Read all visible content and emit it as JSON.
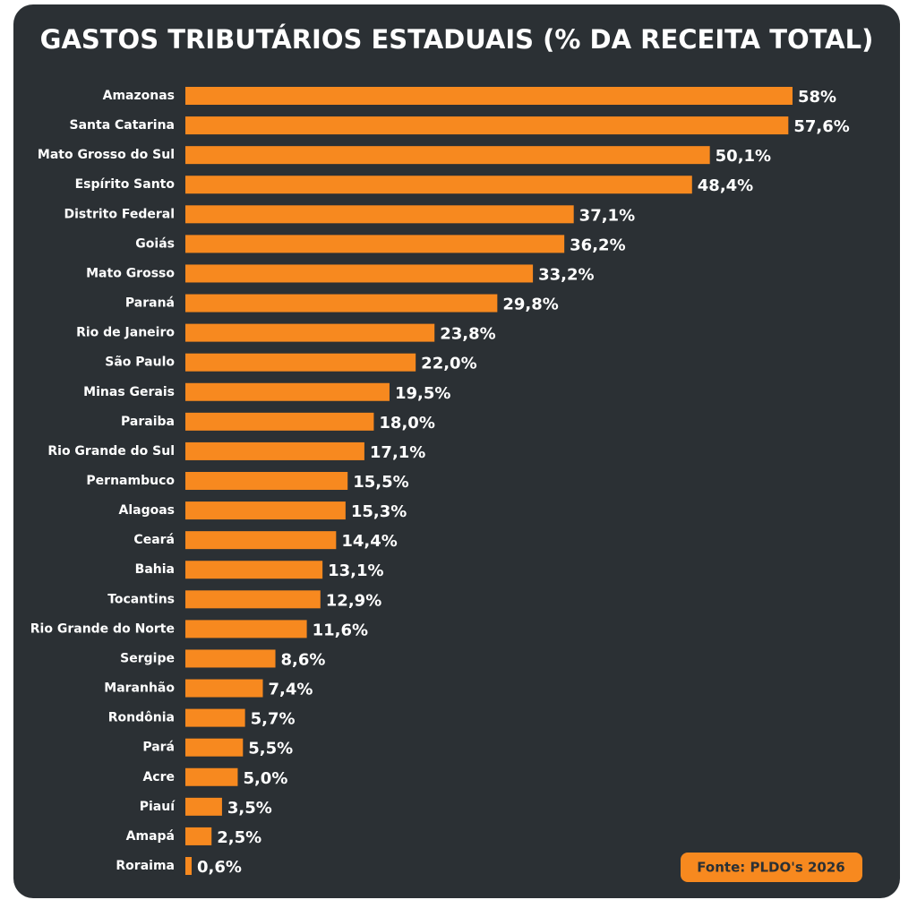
{
  "chart_data": {
    "type": "bar",
    "orientation": "horizontal",
    "title": "GASTOS TRIBUTÁRIOS ESTADUAIS (% DA RECEITA TOTAL)",
    "categories": [
      "Amazonas",
      "Santa Catarina",
      "Mato Grosso do Sul",
      "Espírito Santo",
      "Distrito Federal",
      "Goiás",
      "Mato Grosso",
      "Paraná",
      "Rio de Janeiro",
      "São Paulo",
      "Minas Gerais",
      "Paraiba",
      "Rio Grande do Sul",
      "Pernambuco",
      "Alagoas",
      "Ceará",
      "Bahia",
      "Tocantins",
      "Rio Grande do Norte",
      "Sergipe",
      "Maranhão",
      "Rondônia",
      "Pará",
      "Acre",
      "Piauí",
      "Amapá",
      "Roraima"
    ],
    "values": [
      58,
      57.6,
      50.1,
      48.4,
      37.1,
      36.2,
      33.2,
      29.8,
      23.8,
      22.0,
      19.5,
      18.0,
      17.1,
      15.5,
      15.3,
      14.4,
      13.1,
      12.9,
      11.6,
      8.6,
      7.4,
      5.7,
      5.5,
      5.0,
      3.5,
      2.5,
      0.6
    ],
    "value_labels": [
      "58%",
      "57,6%",
      "50,1%",
      "48,4%",
      "37,1%",
      "36,2%",
      "33,2%",
      "29,8%",
      "23,8%",
      "22,0%",
      "19,5%",
      "18,0%",
      "17,1%",
      "15,5%",
      "15,3%",
      "14,4%",
      "13,1%",
      "12,9%",
      "11,6%",
      "8,6%",
      "7,4%",
      "5,7%",
      "5,5%",
      "5,0%",
      "3,5%",
      "2,5%",
      "0,6%"
    ],
    "color": "#f7891f",
    "source": "Fonte: PLDO's 2026"
  }
}
